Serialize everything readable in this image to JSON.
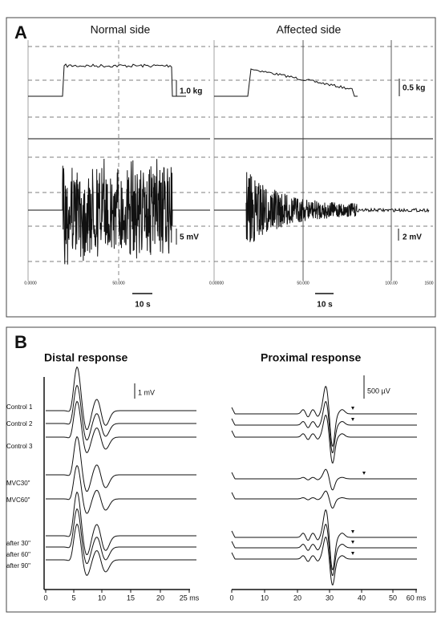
{
  "panel_a": {
    "label": "A",
    "left": {
      "title": "Normal side",
      "force_scale": "1.0 kg",
      "emg_scale": "5 mV",
      "time_scale": "10 s",
      "axis_labels": [
        "0.0000",
        "50.000"
      ]
    },
    "right": {
      "title": "Affected side",
      "force_scale": "0.5 kg",
      "emg_scale": "2 mV",
      "time_scale": "10 s",
      "axis_labels": [
        "0.00000",
        "50.000",
        "100.00",
        "1500"
      ]
    }
  },
  "panel_b": {
    "label": "B",
    "left": {
      "title": "Distal response",
      "scale": "1 mV",
      "xticks": [
        "0",
        "5",
        "10",
        "15",
        "20",
        "25 ms"
      ]
    },
    "right": {
      "title": "Proximal response",
      "scale": "500 µV",
      "xticks": [
        "0",
        "10",
        "20",
        "30",
        "40",
        "50",
        "60 ms"
      ]
    },
    "trace_labels": [
      "Control 1",
      "Control 2",
      "Control 3",
      "MVC30\"",
      "MVC60\"",
      "after 30\"",
      "after 60\"",
      "after 90\""
    ]
  }
}
